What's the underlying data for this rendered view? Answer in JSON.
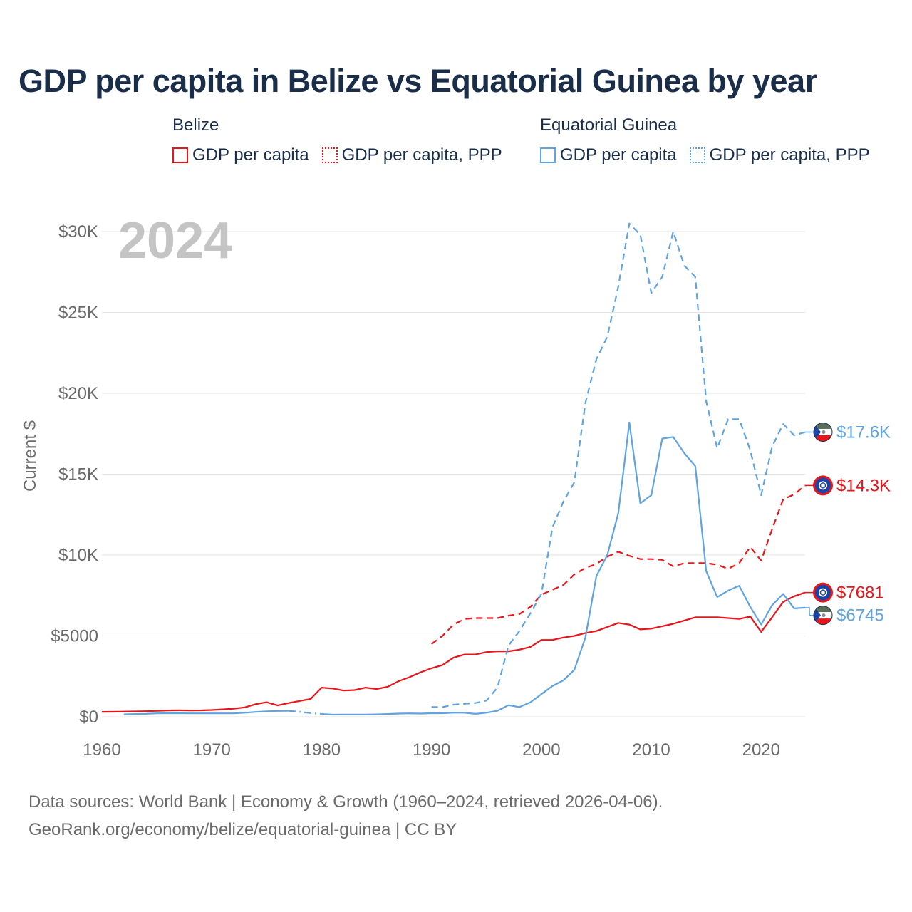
{
  "title": "GDP per capita in Belize vs Equatorial Guinea by year",
  "legend": {
    "groups": [
      {
        "name": "Belize",
        "color": "#e8161b",
        "items": [
          {
            "label": "GDP per capita",
            "style": "solid"
          },
          {
            "label": "GDP per capita, PPP",
            "style": "dotted"
          }
        ]
      },
      {
        "name": "Equatorial Guinea",
        "color": "#5fa3e0",
        "items": [
          {
            "label": "GDP per capita",
            "style": "solid"
          },
          {
            "label": "GDP per capita, PPP",
            "style": "dotted"
          }
        ]
      }
    ]
  },
  "chart_data": {
    "type": "line",
    "year_label": "2024",
    "ylabel": "Current $",
    "xlabel": "",
    "xlim": [
      1960,
      2024
    ],
    "ylim": [
      0,
      30000
    ],
    "x_ticks": [
      "1960",
      "1970",
      "1980",
      "1990",
      "2000",
      "2010",
      "2020"
    ],
    "y_ticks": [
      {
        "value": 0,
        "label": "$0"
      },
      {
        "value": 5000,
        "label": "$5000"
      },
      {
        "value": 10000,
        "label": "$10K"
      },
      {
        "value": 15000,
        "label": "$15K"
      },
      {
        "value": 20000,
        "label": "$20K"
      },
      {
        "value": 25000,
        "label": "$25K"
      },
      {
        "value": 30000,
        "label": "$30K"
      }
    ],
    "series": [
      {
        "name": "Belize GDP per capita",
        "country": "Belize",
        "color": "#e8161b",
        "dash": "solid",
        "end_label": "$7681",
        "x": [
          1960,
          1961,
          1962,
          1963,
          1964,
          1965,
          1966,
          1967,
          1968,
          1969,
          1970,
          1971,
          1972,
          1973,
          1974,
          1975,
          1976,
          1977,
          1978,
          1979,
          1980,
          1981,
          1982,
          1983,
          1984,
          1985,
          1986,
          1987,
          1988,
          1989,
          1990,
          1991,
          1992,
          1993,
          1994,
          1995,
          1996,
          1997,
          1998,
          1999,
          2000,
          2001,
          2002,
          2003,
          2004,
          2005,
          2006,
          2007,
          2008,
          2009,
          2010,
          2011,
          2012,
          2013,
          2014,
          2015,
          2016,
          2017,
          2018,
          2019,
          2020,
          2021,
          2022,
          2023,
          2024
        ],
        "values": [
          305,
          310,
          320,
          330,
          345,
          370,
          390,
          400,
          390,
          395,
          420,
          460,
          500,
          580,
          780,
          900,
          700,
          850,
          980,
          1100,
          1800,
          1750,
          1620,
          1650,
          1800,
          1720,
          1850,
          2200,
          2450,
          2750,
          3000,
          3200,
          3650,
          3850,
          3850,
          4000,
          4050,
          4050,
          4150,
          4320,
          4750,
          4750,
          4900,
          5000,
          5180,
          5300,
          5550,
          5800,
          5700,
          5400,
          5450,
          5600,
          5750,
          5950,
          6150,
          6150,
          6150,
          6100,
          6050,
          6200,
          5250,
          6150,
          7100,
          7450,
          7681
        ]
      },
      {
        "name": "Belize GDP per capita, PPP",
        "country": "Belize",
        "color": "#e8161b",
        "dash": "dashed",
        "end_label": "$14.3K",
        "x": [
          1990,
          1991,
          1992,
          1993,
          1994,
          1995,
          1996,
          1997,
          1998,
          1999,
          2000,
          2001,
          2002,
          2003,
          2004,
          2005,
          2006,
          2007,
          2008,
          2009,
          2010,
          2011,
          2012,
          2013,
          2014,
          2015,
          2016,
          2017,
          2018,
          2019,
          2020,
          2021,
          2022,
          2023,
          2024
        ],
        "values": [
          4500,
          5000,
          5700,
          6050,
          6100,
          6100,
          6100,
          6250,
          6350,
          6800,
          7550,
          7850,
          8150,
          8800,
          9200,
          9450,
          9900,
          10200,
          9950,
          9750,
          9750,
          9700,
          9300,
          9500,
          9500,
          9500,
          9400,
          9150,
          9500,
          10500,
          9650,
          11600,
          13450,
          13750,
          14300
        ]
      },
      {
        "name": "Equatorial Guinea GDP per capita",
        "country": "Equatorial Guinea",
        "color": "#5fa3e0",
        "dash": "solid",
        "end_label": "$6745",
        "x": [
          1962,
          1963,
          1964,
          1965,
          1966,
          1967,
          1968,
          1969,
          1970,
          1971,
          1972,
          1973,
          1974,
          1975,
          1976,
          1977,
          1978,
          1979,
          1980,
          1981,
          1982,
          1983,
          1984,
          1985,
          1986,
          1987,
          1988,
          1989,
          1990,
          1991,
          1992,
          1993,
          1994,
          1995,
          1996,
          1997,
          1998,
          1999,
          2000,
          2001,
          2002,
          2003,
          2004,
          2005,
          2006,
          2007,
          2008,
          2009,
          2010,
          2011,
          2012,
          2013,
          2014,
          2015,
          2016,
          2017,
          2018,
          2019,
          2020,
          2021,
          2022,
          2023,
          2024
        ],
        "values": [
          150,
          170,
          180,
          210,
          220,
          220,
          210,
          210,
          210,
          210,
          210,
          250,
          300,
          340,
          360,
          370,
          300,
          230,
          170,
          130,
          140,
          140,
          140,
          150,
          170,
          200,
          210,
          200,
          220,
          220,
          250,
          250,
          180,
          250,
          370,
          720,
          600,
          900,
          1400,
          1900,
          2250,
          2900,
          4900,
          8700,
          10000,
          12600,
          18200,
          13200,
          13700,
          17200,
          17300,
          16300,
          15500,
          9000,
          7400,
          7800,
          8100,
          6800,
          5700,
          6900,
          7600,
          6700,
          6745
        ],
        "gaps": [
          [
            1977,
            1980
          ]
        ]
      },
      {
        "name": "Equatorial Guinea GDP per capita, PPP",
        "country": "Equatorial Guinea",
        "color": "#5fa3e0",
        "dash": "dashed",
        "end_label": "$17.6K",
        "x": [
          1990,
          1991,
          1992,
          1993,
          1994,
          1995,
          1996,
          1997,
          1998,
          1999,
          2000,
          2001,
          2002,
          2003,
          2004,
          2005,
          2006,
          2007,
          2008,
          2009,
          2010,
          2011,
          2012,
          2013,
          2014,
          2015,
          2016,
          2017,
          2018,
          2019,
          2020,
          2021,
          2022,
          2023,
          2024
        ],
        "values": [
          600,
          600,
          750,
          800,
          850,
          1000,
          1800,
          4400,
          5300,
          6400,
          7600,
          11700,
          13300,
          14500,
          19400,
          22100,
          23500,
          26600,
          30500,
          29800,
          26200,
          27200,
          30000,
          27900,
          27200,
          19500,
          16600,
          18400,
          18400,
          16500,
          13700,
          16700,
          18100,
          17400,
          17600
        ]
      }
    ]
  },
  "footer": {
    "line1": "Data sources: World Bank | Economy & Growth (1960–2024, retrieved 2026-04-06).",
    "line2": "GeoRank.org/economy/belize/equatorial-guinea | CC BY"
  },
  "colors": {
    "title": "#1a2e4a",
    "grid": "#e6e6e6",
    "axis_text": "#6b6b6b",
    "year_watermark": "#c4c4c4"
  }
}
